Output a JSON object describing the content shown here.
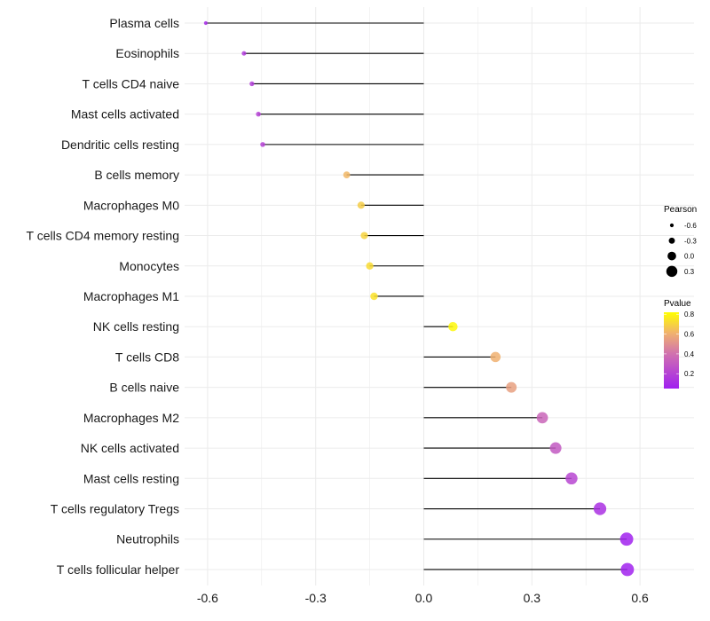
{
  "chart_data": {
    "type": "lollipop",
    "title": "",
    "xlabel": "",
    "ylabel": "",
    "xlim": [
      -0.64,
      0.62
    ],
    "x_ticks": [
      -0.6,
      -0.3,
      0.0,
      0.3,
      0.6
    ],
    "x_tick_labels": [
      "-0.6",
      "-0.3",
      "0.0",
      "0.3",
      "0.6"
    ],
    "grid": true,
    "categories": [
      "Plasma cells",
      "Eosinophils",
      "T cells CD4 naive",
      "Mast cells activated",
      "Dendritic cells resting",
      "B cells memory",
      "Macrophages M0",
      "T cells CD4 memory resting",
      "Monocytes",
      "Macrophages M1",
      "NK cells resting",
      "T cells CD8",
      "B cells naive",
      "Macrophages M2",
      "NK cells activated",
      "Mast cells resting",
      "T cells regulatory  Tregs",
      "Neutrophils",
      "T cells follicular helper"
    ],
    "pearson": [
      -0.605,
      -0.499,
      -0.477,
      -0.459,
      -0.447,
      -0.214,
      -0.174,
      -0.165,
      -0.15,
      -0.138,
      0.081,
      0.199,
      0.243,
      0.329,
      0.366,
      0.41,
      0.489,
      0.563,
      0.565
    ],
    "pvalue": [
      0.1,
      0.17,
      0.18,
      0.2,
      0.2,
      0.62,
      0.68,
      0.7,
      0.72,
      0.74,
      0.8,
      0.6,
      0.55,
      0.35,
      0.3,
      0.22,
      0.12,
      0.06,
      0.06
    ],
    "legend": {
      "size_title": "Pearson",
      "size_values": [
        -0.6,
        -0.3,
        0.0,
        0.3
      ],
      "size_labels": [
        "-0.6",
        "-0.3",
        "0.0",
        "0.3"
      ],
      "color_title": "Pvalue",
      "color_labels": [
        "0.8",
        "0.6",
        "0.4",
        "0.2"
      ],
      "color_values": [
        0.8,
        0.6,
        0.4,
        0.2
      ],
      "color_range": [
        0.05,
        0.82
      ],
      "colors": [
        "#a020f0",
        "#d070b0",
        "#f0b070",
        "#ffff00"
      ],
      "placement": "right"
    }
  }
}
